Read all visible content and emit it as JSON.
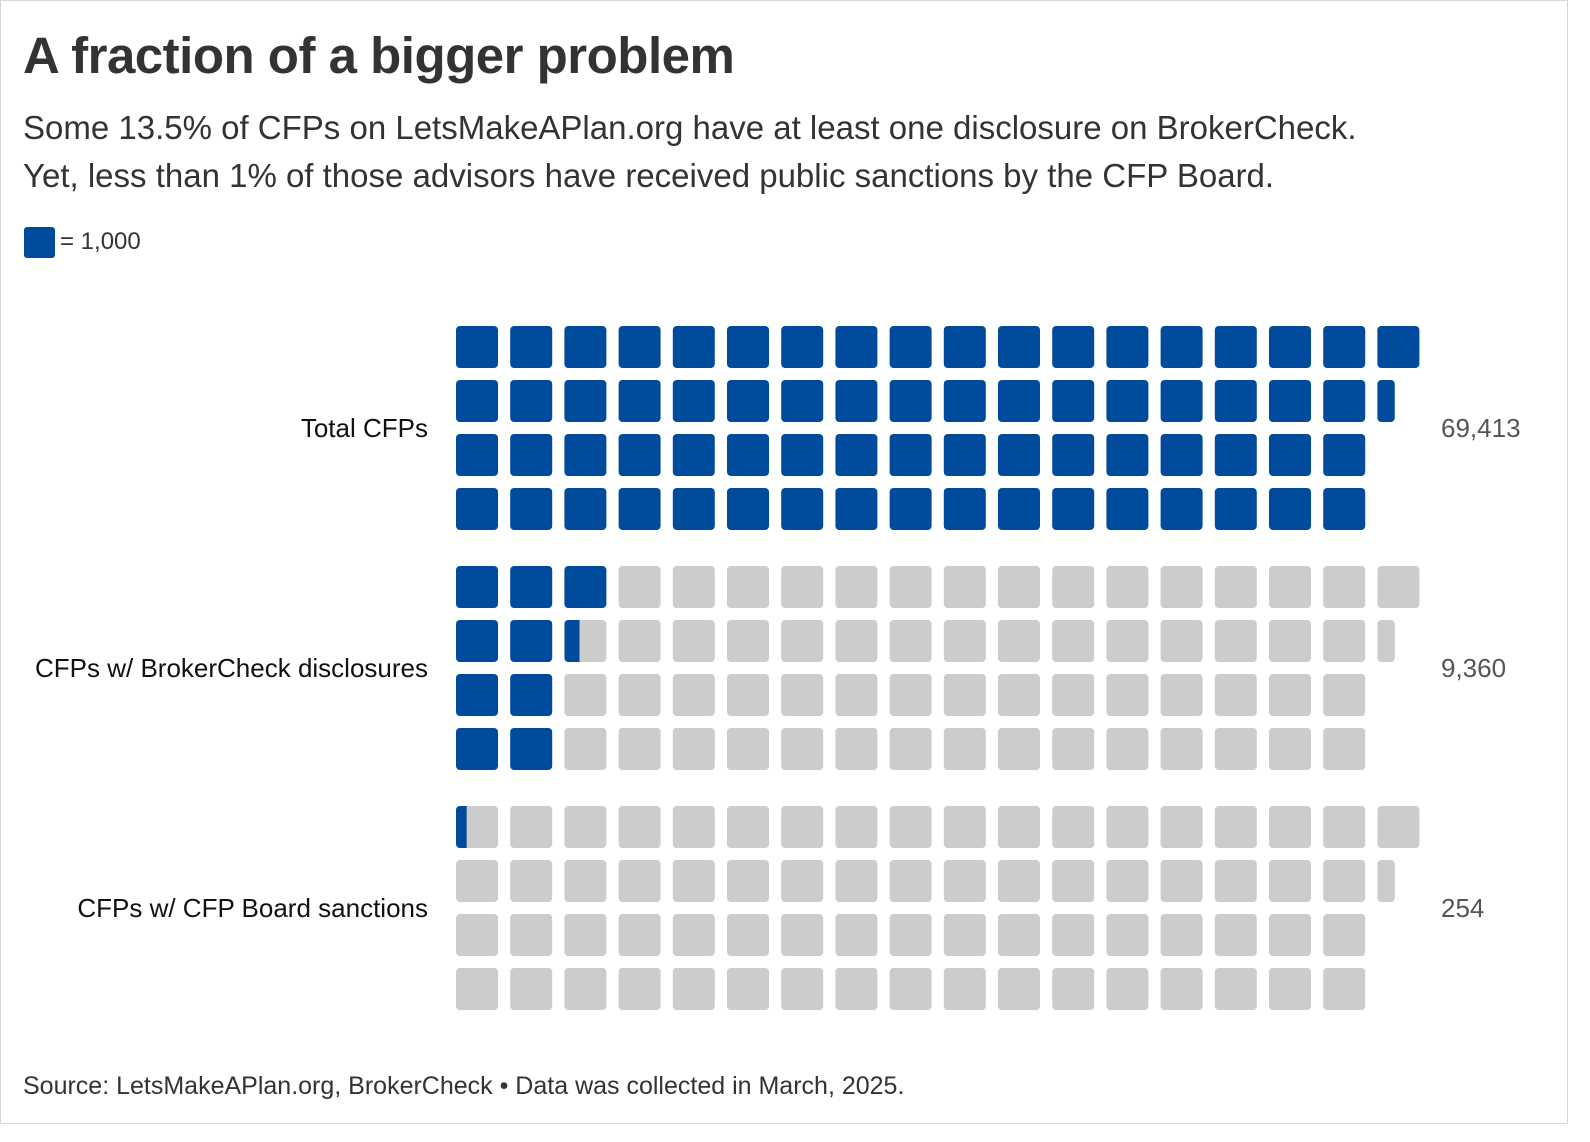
{
  "title": "A fraction of a bigger problem",
  "subtitle_line1": "Some 13.5% of CFPs on LetsMakeAPlan.org have at least one disclosure on BrokerCheck.",
  "subtitle_line2": "Yet, less than 1% of those advisors have received public sanctions by the CFP Board.",
  "legend_label": "= 1,000",
  "source": "Source: LetsMakeAPlan.org, BrokerCheck • Data was collected in March, 2025.",
  "colors": {
    "filled": "#004b9b",
    "empty": "#cccccc"
  },
  "chart_data": {
    "type": "waffle",
    "unit_value": 1000,
    "unit_label": "= 1,000",
    "total_capacity_label": "Total CFPs",
    "rows": [
      {
        "label": "Total CFPs",
        "value": 69413,
        "value_label": "69,413"
      },
      {
        "label": "CFPs w/ BrokerCheck disclosures",
        "value": 9360,
        "value_label": "9,360"
      },
      {
        "label": "CFPs w/ CFP Board sanctions",
        "value": 254,
        "value_label": "254"
      }
    ]
  }
}
